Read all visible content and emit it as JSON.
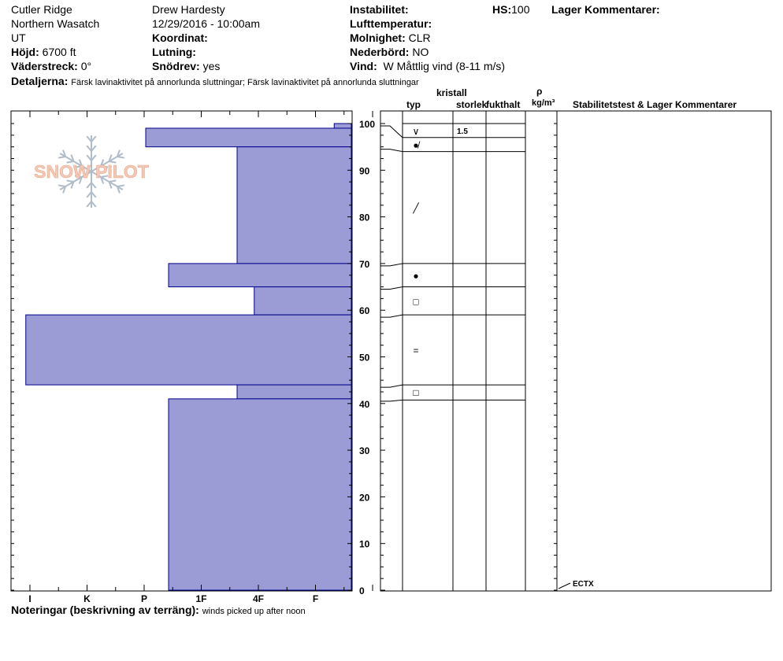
{
  "header": {
    "location": "Cutler Ridge",
    "range": "Northern Wasatch",
    "state": "UT",
    "elevation_label": "Höjd:",
    "elevation": "6700 ft",
    "aspect_label": "Väderstreck:",
    "aspect": "0°",
    "details_label": "Detaljerna:",
    "details": "Färsk lavinaktivitet på annorlunda sluttningar; Färsk lavinaktivitet på annorlunda sluttningar",
    "observer": "Drew Hardesty",
    "datetime": "12/29/2016 - 10:00am",
    "coord_label": "Koordinat:",
    "slope_label": "Lutning:",
    "blowing_label": "Snödrev:",
    "blowing": "yes",
    "instability_label": "Instabilitet:",
    "airtemp_label": "Lufttemperatur:",
    "sky_label": "Molnighet:",
    "sky": "CLR",
    "precip_label": "Nederbörd:",
    "precip": "NO",
    "wind_label": "Vind:",
    "wind": "W Måttlig vind (8-11 m/s)",
    "hs_label": "HS:",
    "hs": "100",
    "layer_comments_label": "Lager Kommentarer:"
  },
  "columns": {
    "type": "typ",
    "crystal": "kristall",
    "size": "storlek",
    "moisture": "fukthalt",
    "rho": "ρ",
    "density_unit": "kg/m³",
    "stability": "Stabilitetstest & Lager Kommentarer"
  },
  "notes_label": "Noteringar (beskrivning av terräng):",
  "notes": "winds picked up after noon",
  "logo_text": "SNOW PILOT",
  "hardness_axis": [
    "I",
    "K",
    "P",
    "1F",
    "4F",
    "F"
  ],
  "height_axis": [
    0,
    10,
    20,
    30,
    40,
    50,
    60,
    70,
    80,
    90,
    100
  ],
  "colors": {
    "bar_fill": "#9b9bd6",
    "bar_stroke": "#00008b",
    "logo": "#f0c8b8"
  },
  "chart_data": {
    "type": "bar",
    "title": "",
    "xlabel": "",
    "ylabel": "",
    "ylim": [
      0,
      100
    ],
    "hardness_scale": [
      "F",
      "4F",
      "1F",
      "P",
      "K",
      "I"
    ],
    "layers": [
      {
        "from": 98,
        "to": 100,
        "hardness": 0.3
      },
      {
        "from": 95,
        "to": 99,
        "hardness": 3.6
      },
      {
        "from": 70,
        "to": 95,
        "hardness": 2.0
      },
      {
        "from": 65,
        "to": 70,
        "hardness": 3.2
      },
      {
        "from": 59,
        "to": 65,
        "hardness": 1.7
      },
      {
        "from": 44,
        "to": 59,
        "hardness": 5.7
      },
      {
        "from": 41,
        "to": 44,
        "hardness": 2.0
      },
      {
        "from": 0,
        "to": 41,
        "hardness": 3.2
      }
    ],
    "grain_rows": [
      {
        "from": 97,
        "to": 100,
        "symbol": "∨",
        "size": "1.5"
      },
      {
        "from": 94,
        "to": 97,
        "symbol": "●̸",
        "size": ""
      },
      {
        "from": 70,
        "to": 94,
        "symbol": "╱",
        "size": ""
      },
      {
        "from": 65,
        "to": 70,
        "symbol": "●",
        "size": ""
      },
      {
        "from": 59,
        "to": 65,
        "symbol": "□",
        "size": ""
      },
      {
        "from": 44,
        "to": 59,
        "symbol": "=",
        "size": ""
      },
      {
        "from": 41,
        "to": 44,
        "symbol": "□",
        "size": ""
      }
    ],
    "tests": [
      {
        "height": 0,
        "label": "ECTX"
      }
    ]
  }
}
